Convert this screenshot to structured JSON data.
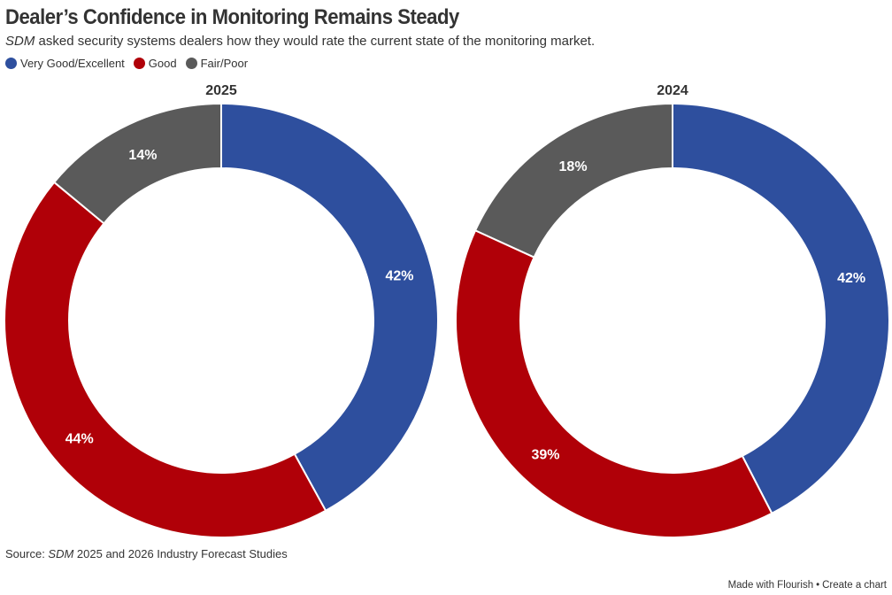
{
  "header": {
    "title": "Dealer’s Confidence in Monitoring Remains Steady",
    "subtitle_em": "SDM",
    "subtitle_rest": " asked security systems dealers how they would rate the current state of the monitoring market."
  },
  "legend": [
    {
      "label": "Very Good/Excellent",
      "color": "#2e4f9e"
    },
    {
      "label": "Good",
      "color": "#b00008"
    },
    {
      "label": "Fair/Poor",
      "color": "#5a5a5a"
    }
  ],
  "chart_data": [
    {
      "type": "pie",
      "title": "2025",
      "categories": [
        "Very Good/Excellent",
        "Good",
        "Fair/Poor"
      ],
      "values": [
        42,
        44,
        14
      ],
      "labels": [
        "42%",
        "44%",
        "14%"
      ],
      "colors": [
        "#2e4f9e",
        "#b00008",
        "#5a5a5a"
      ],
      "donut": true
    },
    {
      "type": "pie",
      "title": "2024",
      "categories": [
        "Very Good/Excellent",
        "Good",
        "Fair/Poor"
      ],
      "values": [
        42,
        39,
        18
      ],
      "labels": [
        "42%",
        "39%",
        "18%"
      ],
      "colors": [
        "#2e4f9e",
        "#b00008",
        "#5a5a5a"
      ],
      "donut": true
    }
  ],
  "source": {
    "prefix": "Source: ",
    "em": "SDM",
    "rest": " 2025 and 2026 Industry Forecast Studies"
  },
  "footer": {
    "made_with": "Made with Flourish",
    "separator": "•",
    "create": "Create a chart"
  }
}
